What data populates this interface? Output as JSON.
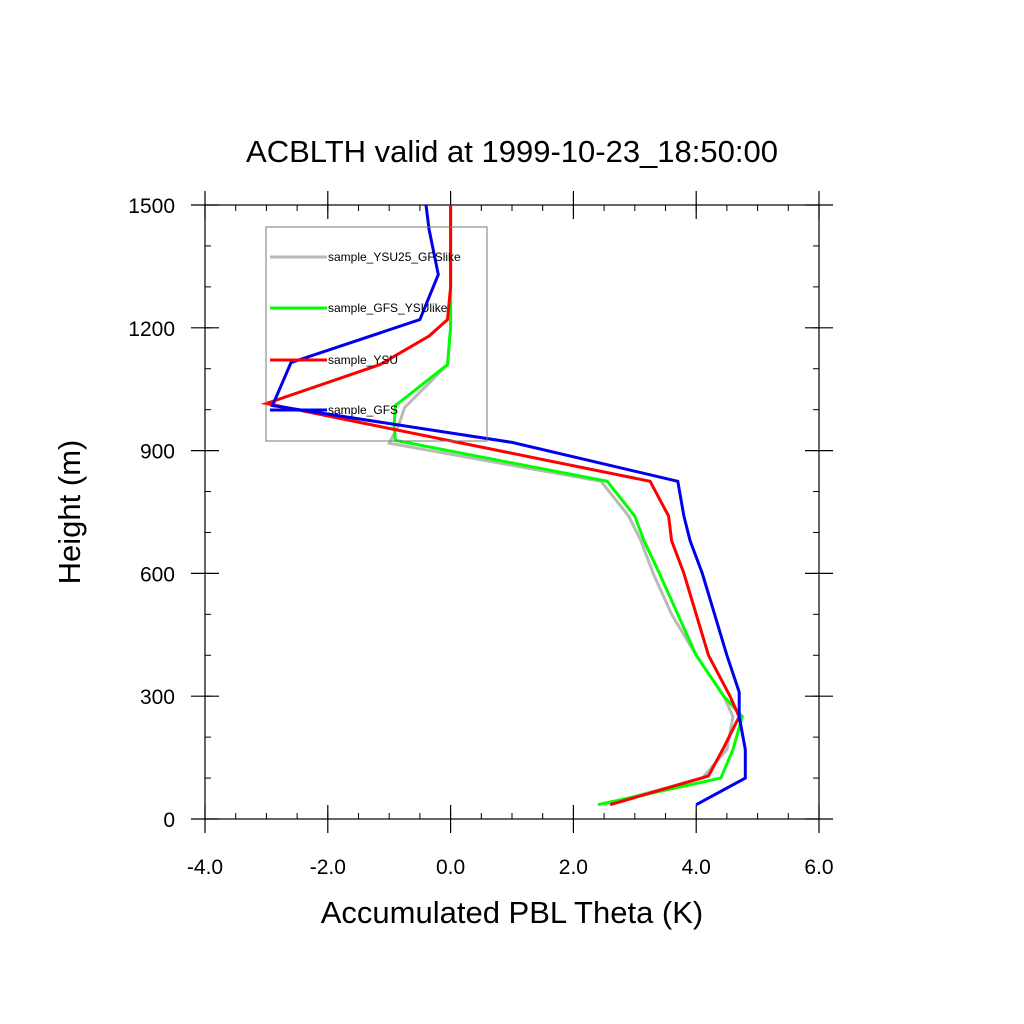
{
  "chart_data": {
    "type": "line",
    "title": "ACBLTH valid at 1999-10-23_18:50:00",
    "xlabel": "Accumulated PBL Theta (K)",
    "ylabel": "Height (m)",
    "xlim": [
      -4.0,
      6.0
    ],
    "ylim": [
      0,
      1500
    ],
    "x_ticks": [
      "-4.0",
      "-2.0",
      "0.0",
      "2.0",
      "4.0",
      "6.0"
    ],
    "y_ticks": [
      "0",
      "300",
      "600",
      "900",
      "1200",
      "1500"
    ],
    "x_tick_values": [
      -4,
      -2,
      0,
      2,
      4,
      6
    ],
    "y_tick_values": [
      0,
      300,
      600,
      900,
      1200,
      1500
    ],
    "grid": false,
    "legend": {
      "placement": "top-left inside",
      "boxed": true
    },
    "series": [
      {
        "name": "sample_YSU25_GFSlike",
        "color": "#b9b9b9",
        "points": [
          [
            2.5,
            35
          ],
          [
            4.1,
            100
          ],
          [
            4.5,
            170
          ],
          [
            4.6,
            250
          ],
          [
            4.45,
            300
          ],
          [
            4.0,
            400
          ],
          [
            3.6,
            500
          ],
          [
            3.3,
            600
          ],
          [
            3.1,
            680
          ],
          [
            2.9,
            740
          ],
          [
            2.45,
            825
          ],
          [
            -1.0,
            918
          ],
          [
            -0.85,
            960
          ],
          [
            -0.75,
            1005
          ],
          [
            -0.05,
            1110
          ],
          [
            0.0,
            1200
          ],
          [
            0.0,
            1300
          ],
          [
            0.0,
            1500
          ]
        ]
      },
      {
        "name": "sample_GFS_YSUlike",
        "color": "#00ff00",
        "points": [
          [
            2.4,
            35
          ],
          [
            4.4,
            100
          ],
          [
            4.6,
            170
          ],
          [
            4.75,
            250
          ],
          [
            4.45,
            300
          ],
          [
            4.0,
            400
          ],
          [
            3.7,
            500
          ],
          [
            3.4,
            600
          ],
          [
            3.15,
            680
          ],
          [
            3.0,
            740
          ],
          [
            2.55,
            825
          ],
          [
            -0.9,
            925
          ],
          [
            -0.92,
            960
          ],
          [
            -0.9,
            1010
          ],
          [
            -0.05,
            1110
          ],
          [
            0.0,
            1200
          ],
          [
            0.0,
            1300
          ],
          [
            0.0,
            1500
          ]
        ]
      },
      {
        "name": "sample_YSU",
        "color": "#ff0000",
        "points": [
          [
            2.6,
            35
          ],
          [
            4.2,
            105
          ],
          [
            4.45,
            175
          ],
          [
            4.7,
            250
          ],
          [
            4.55,
            300
          ],
          [
            4.2,
            400
          ],
          [
            4.0,
            500
          ],
          [
            3.8,
            600
          ],
          [
            3.6,
            680
          ],
          [
            3.55,
            740
          ],
          [
            3.25,
            825
          ],
          [
            -3.0,
            1015
          ],
          [
            -1.15,
            1110
          ],
          [
            -0.35,
            1180
          ],
          [
            -0.05,
            1220
          ],
          [
            0.0,
            1300
          ],
          [
            0.0,
            1500
          ]
        ]
      },
      {
        "name": "sample_GFS",
        "color": "#0000ee",
        "points": [
          [
            4.0,
            35
          ],
          [
            4.8,
            100
          ],
          [
            4.8,
            170
          ],
          [
            4.7,
            250
          ],
          [
            4.7,
            310
          ],
          [
            4.5,
            400
          ],
          [
            4.3,
            500
          ],
          [
            4.1,
            600
          ],
          [
            3.9,
            680
          ],
          [
            3.8,
            740
          ],
          [
            3.7,
            825
          ],
          [
            1.0,
            920
          ],
          [
            -2.9,
            1010
          ],
          [
            -2.6,
            1115
          ],
          [
            -0.5,
            1220
          ],
          [
            -0.2,
            1330
          ],
          [
            -0.35,
            1440
          ],
          [
            -0.4,
            1500
          ]
        ]
      }
    ]
  }
}
